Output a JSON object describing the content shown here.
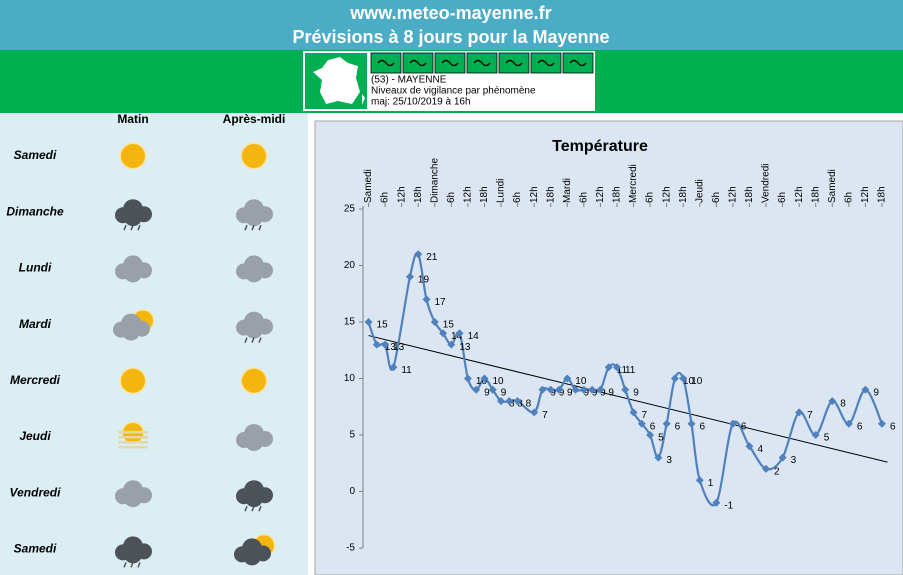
{
  "header": {
    "site": "www.meteo-mayenne.fr",
    "title": "Prévisions à 8 jours pour la Mayenne"
  },
  "vigilance": {
    "dept": "(53) - MAYENNE",
    "caption": "Niveaux de vigilance par phénomène",
    "update": "maj: 25/10/2019 à 16h"
  },
  "forecast": {
    "columns": [
      "Matin",
      "Après-midi"
    ],
    "days": [
      "Samedi",
      "Dimanche",
      "Lundi",
      "Mardi",
      "Mercredi",
      "Jeudi",
      "Vendredi",
      "Samedi"
    ]
  },
  "chart_data": {
    "type": "line",
    "title": "Température",
    "x": [
      0,
      3,
      6,
      9,
      15,
      18,
      21,
      24,
      27,
      30,
      33,
      36,
      39,
      42,
      45,
      48,
      51,
      54,
      60,
      63,
      66,
      69,
      72,
      75,
      78,
      81,
      84,
      87,
      90,
      93,
      96,
      99,
      102,
      105,
      108,
      111,
      114,
      117,
      120,
      126,
      132,
      138,
      144,
      150,
      156,
      162,
      168,
      174,
      180,
      186
    ],
    "series": [
      {
        "name": "Température",
        "color": "#4f81bd",
        "values": [
          15,
          13,
          13,
          11,
          19,
          21,
          17,
          15,
          14,
          13,
          14,
          10,
          9,
          10,
          9,
          8,
          8,
          8,
          7,
          9,
          9,
          9,
          10,
          9,
          9,
          9,
          9,
          11,
          11,
          9,
          7,
          6,
          5,
          3,
          6,
          10,
          10,
          6,
          1,
          -1,
          6,
          4,
          2,
          3,
          7,
          5,
          8,
          6,
          9,
          6
        ]
      }
    ],
    "trend": {
      "x": [
        0,
        188
      ],
      "values": [
        13.8,
        2.6
      ],
      "color": "#000000"
    },
    "xlim": [
      -2,
      190
    ],
    "ylim": [
      -5,
      25
    ],
    "yticks": [
      -5,
      0,
      5,
      10,
      15,
      20,
      25
    ],
    "xticks": [
      {
        "value": 0,
        "label": "Samedi"
      },
      {
        "value": 6,
        "label": "6h"
      },
      {
        "value": 12,
        "label": "12h"
      },
      {
        "value": 18,
        "label": "18h"
      },
      {
        "value": 24,
        "label": "Dimanche"
      },
      {
        "value": 30,
        "label": "6h"
      },
      {
        "value": 36,
        "label": "12h"
      },
      {
        "value": 42,
        "label": "18h"
      },
      {
        "value": 48,
        "label": "Lundi"
      },
      {
        "value": 54,
        "label": "6h"
      },
      {
        "value": 60,
        "label": "12h"
      },
      {
        "value": 66,
        "label": "18h"
      },
      {
        "value": 72,
        "label": "Mardi"
      },
      {
        "value": 78,
        "label": "6h"
      },
      {
        "value": 84,
        "label": "12h"
      },
      {
        "value": 90,
        "label": "18h"
      },
      {
        "value": 96,
        "label": "Mercredi"
      },
      {
        "value": 102,
        "label": "6h"
      },
      {
        "value": 108,
        "label": "12h"
      },
      {
        "value": 114,
        "label": "18h"
      },
      {
        "value": 120,
        "label": "Jeudi"
      },
      {
        "value": 126,
        "label": "6h"
      },
      {
        "value": 132,
        "label": "12h"
      },
      {
        "value": 138,
        "label": "18h"
      },
      {
        "value": 144,
        "label": "Vendredi"
      },
      {
        "value": 150,
        "label": "6h"
      },
      {
        "value": 156,
        "label": "12h"
      },
      {
        "value": 162,
        "label": "18h"
      },
      {
        "value": 168,
        "label": "Samedi"
      },
      {
        "value": 174,
        "label": "6h"
      },
      {
        "value": 180,
        "label": "12h"
      },
      {
        "value": 186,
        "label": "18h"
      }
    ]
  }
}
